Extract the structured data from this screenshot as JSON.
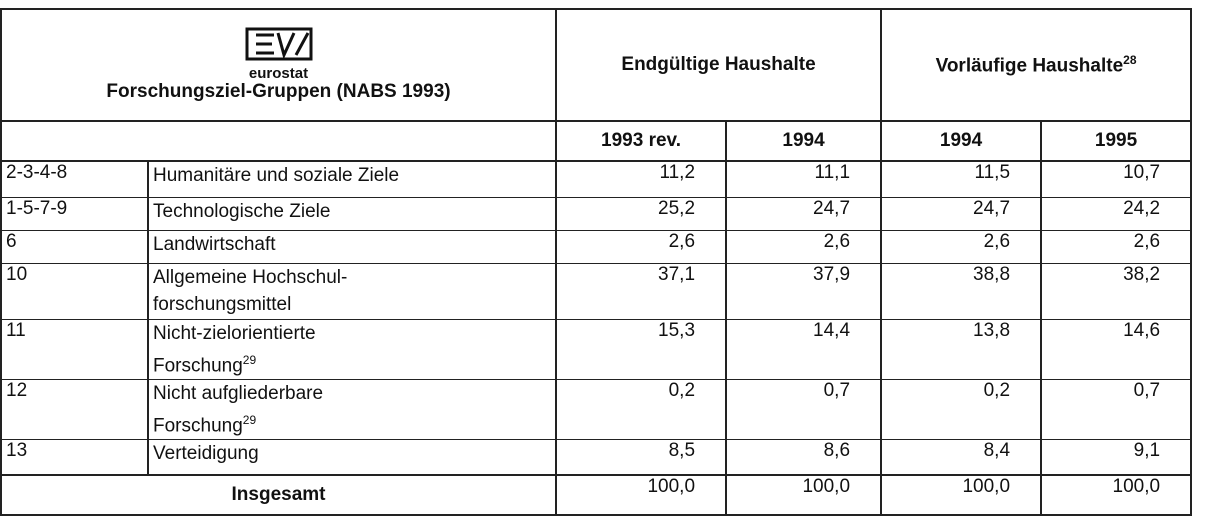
{
  "header": {
    "logo_text": "eurostat",
    "group_title": "Forschungsziel-Gruppen (NABS 1993)",
    "final": "Endgültige Haushalte",
    "provisional": "Vorläufige Haushalte",
    "provisional_note": "28",
    "years": [
      "1993 rev.",
      "1994",
      "1994",
      "1995"
    ]
  },
  "table": {
    "rows": [
      {
        "code": "2-3-4-8",
        "label": [
          "Humanitäre und soziale Ziele"
        ],
        "values": [
          "11,2",
          "11,1",
          "11,5",
          "10,7"
        ]
      },
      {
        "code": "1-5-7-9",
        "label": [
          "Technologische Ziele"
        ],
        "values": [
          "25,2",
          "24,7",
          "24,7",
          "24,2"
        ]
      },
      {
        "code": "6",
        "label": [
          "Landwirtschaft"
        ],
        "values": [
          "2,6",
          "2,6",
          "2,6",
          "2,6"
        ]
      },
      {
        "code": "10",
        "label": [
          "Allgemeine Hochschul-",
          "forschungsmittel"
        ],
        "values": [
          "37,1",
          "37,9",
          "38,8",
          "38,2"
        ]
      },
      {
        "code": "11",
        "label": [
          "Nicht-zielorientierte",
          "Forschung"
        ],
        "note": "29",
        "values": [
          "15,3",
          "14,4",
          "13,8",
          "14,6"
        ]
      },
      {
        "code": "12",
        "label": [
          "Nicht aufgliederbare",
          "Forschung"
        ],
        "note": "29",
        "values": [
          "0,2",
          "0,7",
          "0,2",
          "0,7"
        ]
      },
      {
        "code": "13",
        "label": [
          "Verteidigung"
        ],
        "values": [
          "8,5",
          "8,6",
          "8,4",
          "9,1"
        ]
      }
    ],
    "total": {
      "label": "Insgesamt",
      "values": [
        "100,0",
        "100,0",
        "100,0",
        "100,0"
      ]
    }
  }
}
